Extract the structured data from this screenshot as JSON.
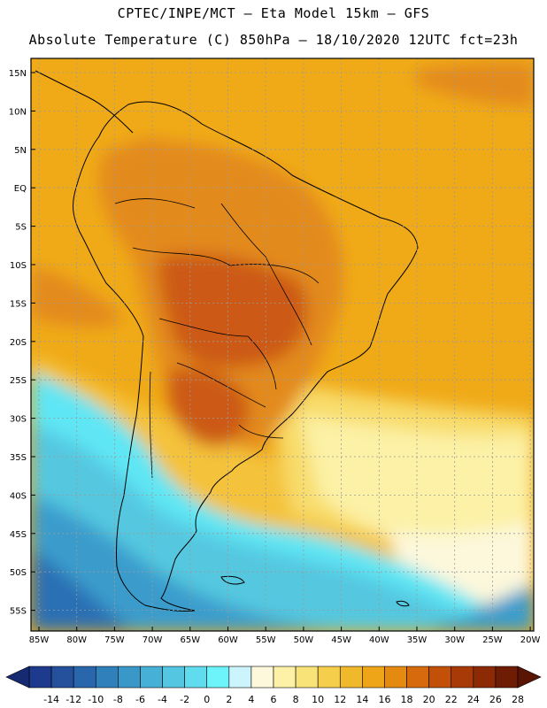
{
  "header": {
    "line1": "CPTEC/INPE/MCT —  Eta Model 15km — GFS",
    "line2": "Absolute Temperature (C) 850hPa — 18/10/2020 12UTC fct=23h"
  },
  "map": {
    "lat_labels": [
      "15N",
      "10N",
      "5N",
      "EQ",
      "5S",
      "10S",
      "15S",
      "20S",
      "25S",
      "30S",
      "35S",
      "40S",
      "45S",
      "50S",
      "55S"
    ],
    "lon_labels": [
      "85W",
      "80W",
      "75W",
      "70W",
      "65W",
      "60W",
      "55W",
      "50W",
      "45W",
      "40W",
      "35W",
      "30W",
      "25W",
      "20W"
    ],
    "colors": {
      "hot": "#cc5a12",
      "warm": "#e38a1c",
      "orange": "#f0aa18",
      "gold": "#f4c23a",
      "yellow": "#f8dc6a",
      "paleyellow": "#fcf1a6",
      "cream": "#fdf8dc",
      "cyan": "#5ee6f4",
      "lightblue": "#55c8e0",
      "midblue": "#3a9ccc",
      "deepblue": "#2a6fb4"
    }
  },
  "colorbar": {
    "ticks": [
      "-14",
      "-12",
      "-10",
      "-8",
      "-6",
      "-4",
      "-2",
      "0",
      "2",
      "4",
      "6",
      "8",
      "10",
      "12",
      "14",
      "16",
      "18",
      "20",
      "22",
      "24",
      "26",
      "28"
    ],
    "colors": [
      "#1e3a8c",
      "#24509c",
      "#2a66ac",
      "#3080bc",
      "#3a98c8",
      "#46b0d6",
      "#54c6e2",
      "#60dcee",
      "#6cf4fa",
      "#ccf4fc",
      "#fdf8dc",
      "#fcf1a6",
      "#f8e378",
      "#f5cf4c",
      "#f0b92c",
      "#eea518",
      "#e48a10",
      "#d66a0c",
      "#c25008",
      "#a83a08",
      "#8c2a06",
      "#6e1c04"
    ]
  }
}
